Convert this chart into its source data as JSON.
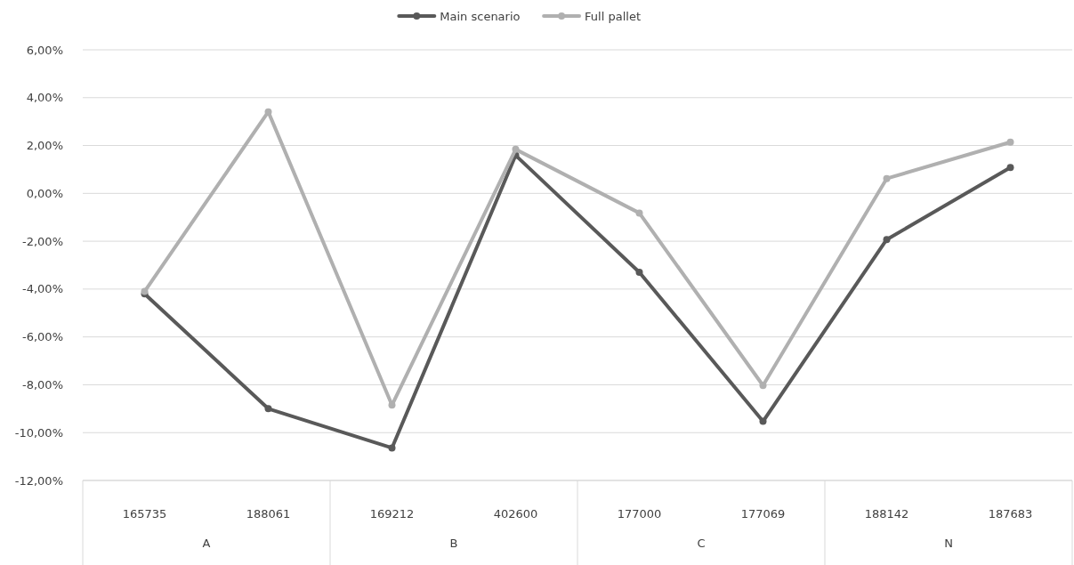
{
  "chart_data": {
    "type": "line",
    "categories": [
      "165735",
      "188061",
      "169212",
      "402600",
      "177000",
      "177069",
      "188142",
      "187683"
    ],
    "series": [
      {
        "name": "Main scenario",
        "color": "#595959",
        "values": [
          -4.2,
          -9.0,
          -10.64,
          1.59,
          -3.3,
          -9.53,
          -1.93,
          1.08
        ]
      },
      {
        "name": "Full pallet",
        "color": "#b0b0b0",
        "values": [
          -4.1,
          3.41,
          -8.85,
          1.84,
          -0.82,
          -8.03,
          0.62,
          2.14
        ]
      }
    ],
    "ylim": [
      -12,
      6
    ],
    "yticks": [
      {
        "value": -12,
        "label": "-12,00%"
      },
      {
        "value": -10,
        "label": "-10,00%"
      },
      {
        "value": -8,
        "label": "-8,00%"
      },
      {
        "value": -6,
        "label": "-6,00%"
      },
      {
        "value": -4,
        "label": "-4,00%"
      },
      {
        "value": -2,
        "label": "-2,00%"
      },
      {
        "value": 0,
        "label": "0,00%"
      },
      {
        "value": 2,
        "label": "2,00%"
      },
      {
        "value": 4,
        "label": "4,00%"
      },
      {
        "value": 6,
        "label": "6,00%"
      }
    ],
    "annotations": [
      "A",
      "B",
      "C",
      "N"
    ],
    "grid": "y",
    "legend": "top",
    "marker": "circle",
    "line_style": "solid"
  }
}
